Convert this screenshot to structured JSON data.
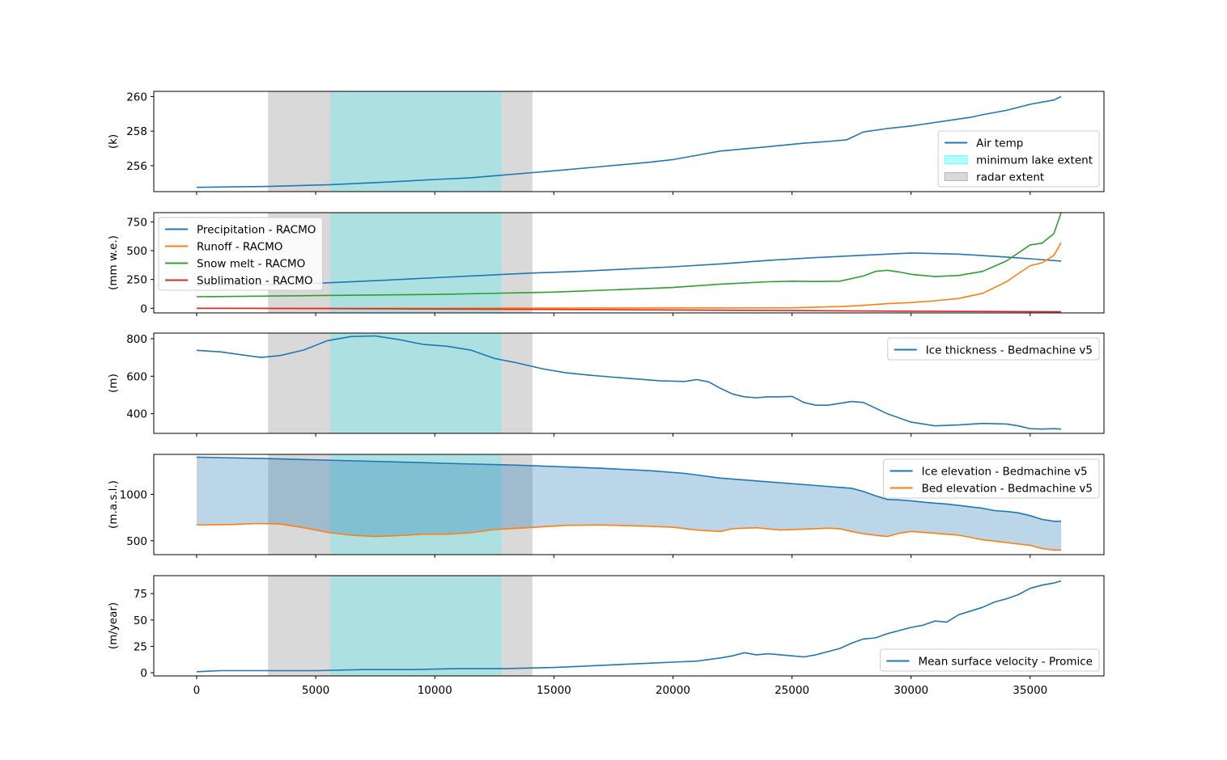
{
  "chart_data": [
    {
      "type": "line",
      "ylabel": "(k)",
      "ylim": [
        254.5,
        260.3
      ],
      "yticks": [
        256,
        258,
        260
      ],
      "legend_position": "lower-right",
      "series": [
        {
          "name": "Air temp",
          "color": "#1f77b4",
          "x": [
            0,
            3000,
            5600,
            8000,
            10000,
            11500,
            12800,
            14100,
            15000,
            17000,
            19000,
            20000,
            21000,
            22000,
            24000,
            25500,
            26500,
            27300,
            28000,
            29000,
            30000,
            31000,
            32000,
            32500,
            33000,
            34000,
            35000,
            36000,
            36300
          ],
          "y": [
            254.75,
            254.8,
            254.9,
            255.05,
            255.2,
            255.3,
            255.45,
            255.6,
            255.7,
            255.95,
            256.2,
            256.35,
            256.6,
            256.85,
            257.1,
            257.3,
            257.4,
            257.5,
            257.95,
            258.15,
            258.3,
            258.5,
            258.7,
            258.8,
            258.95,
            259.2,
            259.55,
            259.8,
            260.0
          ]
        }
      ],
      "shaded": [
        {
          "name": "minimum lake extent",
          "x0": 5600,
          "x1": 12800,
          "color": "#00ffff"
        },
        {
          "name": "radar extent",
          "x0": 3000,
          "x1": 14100,
          "color": "#808080"
        }
      ]
    },
    {
      "type": "line",
      "ylabel": "(mm w.e.)",
      "ylim": [
        -40,
        830
      ],
      "yticks": [
        0,
        250,
        500,
        750
      ],
      "legend_position": "upper-left",
      "series": [
        {
          "name": "Precipitation - RACMO",
          "color": "#1f77b4",
          "x": [
            0,
            4000,
            6000,
            8000,
            10000,
            12000,
            14000,
            16000,
            18000,
            20000,
            22000,
            24000,
            26000,
            28000,
            30000,
            32000,
            34000,
            36300
          ],
          "y": [
            200,
            210,
            225,
            245,
            265,
            285,
            305,
            320,
            340,
            360,
            385,
            415,
            440,
            460,
            480,
            470,
            445,
            410
          ]
        },
        {
          "name": "Runoff - RACMO",
          "color": "#ff7f0e",
          "x": [
            0,
            10000,
            14000,
            20000,
            25000,
            26000,
            27000,
            28000,
            29000,
            30000,
            31000,
            32000,
            33000,
            34000,
            35000,
            35500,
            36000,
            36300
          ],
          "y": [
            0,
            0,
            2,
            3,
            4,
            10,
            15,
            25,
            40,
            50,
            65,
            85,
            130,
            230,
            370,
            395,
            460,
            570
          ]
        },
        {
          "name": "Snow melt - RACMO",
          "color": "#2ca02c",
          "x": [
            0,
            5000,
            10000,
            15000,
            20000,
            22000,
            24000,
            25000,
            26000,
            27000,
            28000,
            28500,
            29000,
            29500,
            30000,
            31000,
            32000,
            33000,
            34000,
            35000,
            35500,
            36000,
            36300
          ],
          "y": [
            100,
            110,
            120,
            140,
            180,
            210,
            230,
            235,
            232,
            235,
            280,
            320,
            330,
            315,
            295,
            275,
            285,
            320,
            410,
            550,
            565,
            650,
            830
          ]
        },
        {
          "name": "Sublimation - RACMO",
          "color": "#d62728",
          "x": [
            0,
            5000,
            10000,
            15000,
            20000,
            25000,
            30000,
            36300
          ],
          "y": [
            0,
            -2,
            -6,
            -10,
            -15,
            -20,
            -25,
            -30
          ]
        }
      ],
      "shaded": [
        {
          "name": "minimum lake extent",
          "x0": 5600,
          "x1": 12800,
          "color": "#00ffff"
        },
        {
          "name": "radar extent",
          "x0": 3000,
          "x1": 14100,
          "color": "#808080"
        }
      ]
    },
    {
      "type": "line",
      "ylabel": "(m)",
      "ylim": [
        295,
        830
      ],
      "yticks": [
        400,
        600,
        800
      ],
      "legend_position": "upper-right",
      "series": [
        {
          "name": "Ice thickness - Bedmachine v5",
          "color": "#1f77b4",
          "x": [
            0,
            1000,
            2000,
            2700,
            3500,
            4500,
            5500,
            6500,
            7500,
            8500,
            9500,
            10500,
            11500,
            12500,
            13500,
            14500,
            15500,
            16500,
            17500,
            18500,
            19500,
            20500,
            21000,
            21500,
            22000,
            22500,
            23000,
            23500,
            24000,
            24500,
            25000,
            25500,
            26000,
            26500,
            27000,
            27500,
            28000,
            28500,
            29000,
            30000,
            31000,
            32000,
            33000,
            34000,
            34500,
            35000,
            35500,
            36000,
            36300
          ],
          "y": [
            738,
            730,
            712,
            700,
            710,
            740,
            790,
            812,
            815,
            795,
            770,
            760,
            740,
            695,
            670,
            640,
            618,
            605,
            595,
            585,
            575,
            572,
            582,
            570,
            535,
            505,
            490,
            485,
            490,
            490,
            492,
            460,
            445,
            445,
            455,
            465,
            460,
            430,
            400,
            355,
            335,
            340,
            348,
            345,
            335,
            320,
            318,
            320,
            318
          ]
        }
      ],
      "shaded": [
        {
          "name": "minimum lake extent",
          "x0": 5600,
          "x1": 12800,
          "color": "#00ffff"
        },
        {
          "name": "radar extent",
          "x0": 3000,
          "x1": 14100,
          "color": "#808080"
        }
      ]
    },
    {
      "type": "area",
      "ylabel": "(m.a.s.l.)",
      "ylim": [
        350,
        1430
      ],
      "yticks": [
        500,
        1000
      ],
      "legend_position": "upper-right",
      "series": [
        {
          "name": "Ice elevation - Bedmachine v5",
          "color": "#1f77b4",
          "x": [
            0,
            3000,
            6000,
            9000,
            11000,
            13000,
            15000,
            17000,
            19000,
            20500,
            22000,
            24000,
            26000,
            27000,
            27500,
            28000,
            28500,
            29000,
            29500,
            30000,
            30500,
            31000,
            31500,
            32000,
            32500,
            33000,
            33500,
            34000,
            34500,
            35000,
            35500,
            36000,
            36300
          ],
          "y": [
            1400,
            1385,
            1365,
            1345,
            1330,
            1318,
            1300,
            1280,
            1255,
            1225,
            1175,
            1135,
            1095,
            1075,
            1065,
            1030,
            985,
            945,
            940,
            930,
            915,
            905,
            895,
            880,
            865,
            850,
            825,
            815,
            800,
            770,
            730,
            710,
            710
          ]
        },
        {
          "name": "Bed elevation - Bedmachine v5",
          "color": "#ff7f0e",
          "x": [
            0,
            1500,
            2500,
            3500,
            4500,
            5500,
            6500,
            7500,
            8500,
            9500,
            10500,
            11500,
            12500,
            13500,
            14500,
            15500,
            17000,
            18500,
            20000,
            21000,
            22000,
            22500,
            23500,
            24500,
            25500,
            26500,
            27000,
            27500,
            28000,
            28500,
            29000,
            29500,
            30000,
            30500,
            31000,
            32000,
            33000,
            34000,
            34500,
            35000,
            35500,
            36000,
            36300
          ],
          "y": [
            670,
            675,
            685,
            680,
            640,
            590,
            560,
            545,
            555,
            570,
            570,
            585,
            620,
            635,
            650,
            665,
            670,
            660,
            645,
            615,
            600,
            630,
            640,
            615,
            625,
            635,
            630,
            600,
            575,
            560,
            545,
            580,
            600,
            590,
            580,
            560,
            510,
            480,
            465,
            450,
            415,
            400,
            400
          ]
        }
      ],
      "shaded": [
        {
          "name": "minimum lake extent",
          "x0": 5600,
          "x1": 12800,
          "color": "#00ffff"
        },
        {
          "name": "radar extent",
          "x0": 3000,
          "x1": 14100,
          "color": "#808080"
        }
      ]
    },
    {
      "type": "line",
      "ylabel": "(m/year)",
      "ylim": [
        -3,
        92
      ],
      "yticks": [
        0,
        25,
        50,
        75
      ],
      "legend_position": "lower-right",
      "series": [
        {
          "name": "Mean surface velocity - Promice",
          "color": "#1f77b4",
          "x": [
            0,
            1000,
            2000,
            3000,
            5000,
            7000,
            9000,
            11000,
            13000,
            15000,
            16000,
            17000,
            18000,
            19000,
            20000,
            21000,
            22000,
            22500,
            23000,
            23500,
            24000,
            25000,
            25500,
            26000,
            26500,
            27000,
            27500,
            28000,
            28500,
            29000,
            29500,
            30000,
            30500,
            31000,
            31500,
            32000,
            33000,
            33500,
            34000,
            34500,
            35000,
            35500,
            36000,
            36300
          ],
          "y": [
            1,
            2,
            2,
            2,
            2,
            3,
            3,
            4,
            4,
            5,
            6,
            7,
            8,
            9,
            10,
            11,
            14,
            16,
            19,
            17,
            18,
            16,
            15,
            17,
            20,
            23,
            28,
            32,
            33,
            37,
            40,
            43,
            45,
            49,
            48,
            55,
            62,
            67,
            70,
            74,
            80,
            83,
            85,
            87
          ]
        }
      ],
      "shaded": [
        {
          "name": "minimum lake extent",
          "x0": 5600,
          "x1": 12800,
          "color": "#00ffff"
        },
        {
          "name": "radar extent",
          "x0": 3000,
          "x1": 14100,
          "color": "#808080"
        }
      ]
    }
  ],
  "x_axis": {
    "xlim": [
      -1800,
      38100
    ],
    "ticks": [
      0,
      5000,
      10000,
      15000,
      20000,
      25000,
      30000,
      35000
    ],
    "tick_labels": [
      "0",
      "5000",
      "10000",
      "15000",
      "20000",
      "25000",
      "30000",
      "35000"
    ]
  }
}
